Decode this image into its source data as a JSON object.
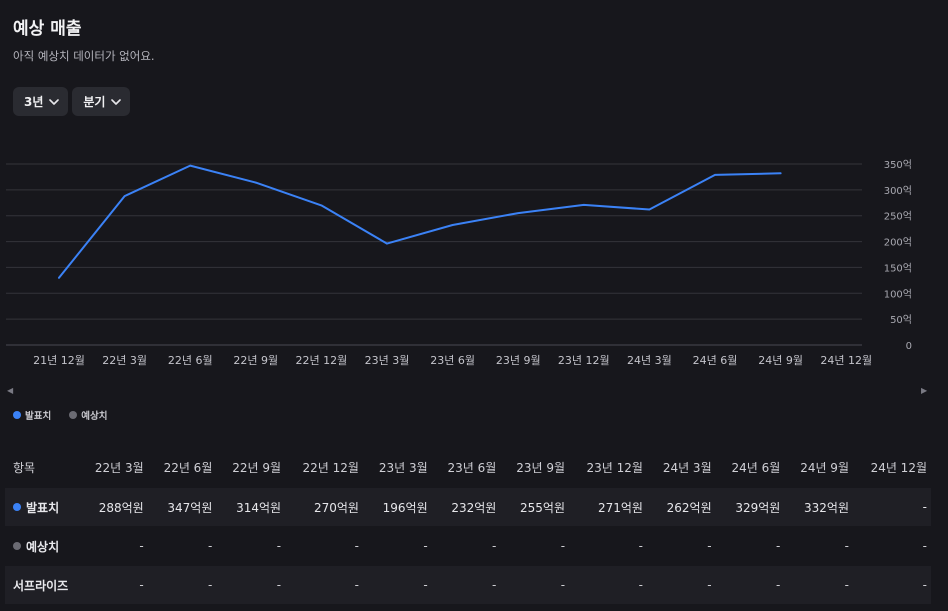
{
  "header": {
    "title": "예상 매출",
    "subtitle": "아직 예상치 데이터가 없어요."
  },
  "controls": {
    "period_label": "3년",
    "interval_label": "분기"
  },
  "colors": {
    "actual": "#3b82f6",
    "estimate": "#6b6b73",
    "grid": "#34343a"
  },
  "legend": {
    "actual": "발표치",
    "estimate": "예상치"
  },
  "chart_data": {
    "type": "line",
    "categories": [
      "21년 12월",
      "22년 3월",
      "22년 6월",
      "22년 9월",
      "22년 12월",
      "23년 3월",
      "23년 6월",
      "23년 9월",
      "23년 12월",
      "24년 3월",
      "24년 6월",
      "24년 9월",
      "24년 12월"
    ],
    "series": [
      {
        "name": "발표치",
        "values": [
          130,
          288,
          347,
          314,
          270,
          196,
          232,
          255,
          271,
          262,
          329,
          332,
          null
        ]
      },
      {
        "name": "예상치",
        "values": [
          null,
          null,
          null,
          null,
          null,
          null,
          null,
          null,
          null,
          null,
          null,
          null,
          null
        ]
      }
    ],
    "y_ticks": [
      "350억",
      "300억",
      "250억",
      "200억",
      "150억",
      "100억",
      "50억",
      "0"
    ],
    "ylim": [
      0,
      350
    ],
    "grid": true,
    "legend": "bottom-left"
  },
  "table": {
    "headers": [
      "항목",
      "22년 3월",
      "22년 6월",
      "22년 9월",
      "22년 12월",
      "23년 3월",
      "23년 6월",
      "23년 9월",
      "23년 12월",
      "24년 3월",
      "24년 6월",
      "24년 9월",
      "24년 12월"
    ],
    "rows": [
      {
        "label": "발표치",
        "cells": [
          "288억원",
          "347억원",
          "314억원",
          "270억원",
          "196억원",
          "232억원",
          "255억원",
          "271억원",
          "262억원",
          "329억원",
          "332억원",
          "-"
        ]
      },
      {
        "label": "예상치",
        "cells": [
          "-",
          "-",
          "-",
          "-",
          "-",
          "-",
          "-",
          "-",
          "-",
          "-",
          "-",
          "-"
        ]
      },
      {
        "label": "서프라이즈",
        "cells": [
          "-",
          "-",
          "-",
          "-",
          "-",
          "-",
          "-",
          "-",
          "-",
          "-",
          "-",
          "-"
        ]
      }
    ]
  }
}
